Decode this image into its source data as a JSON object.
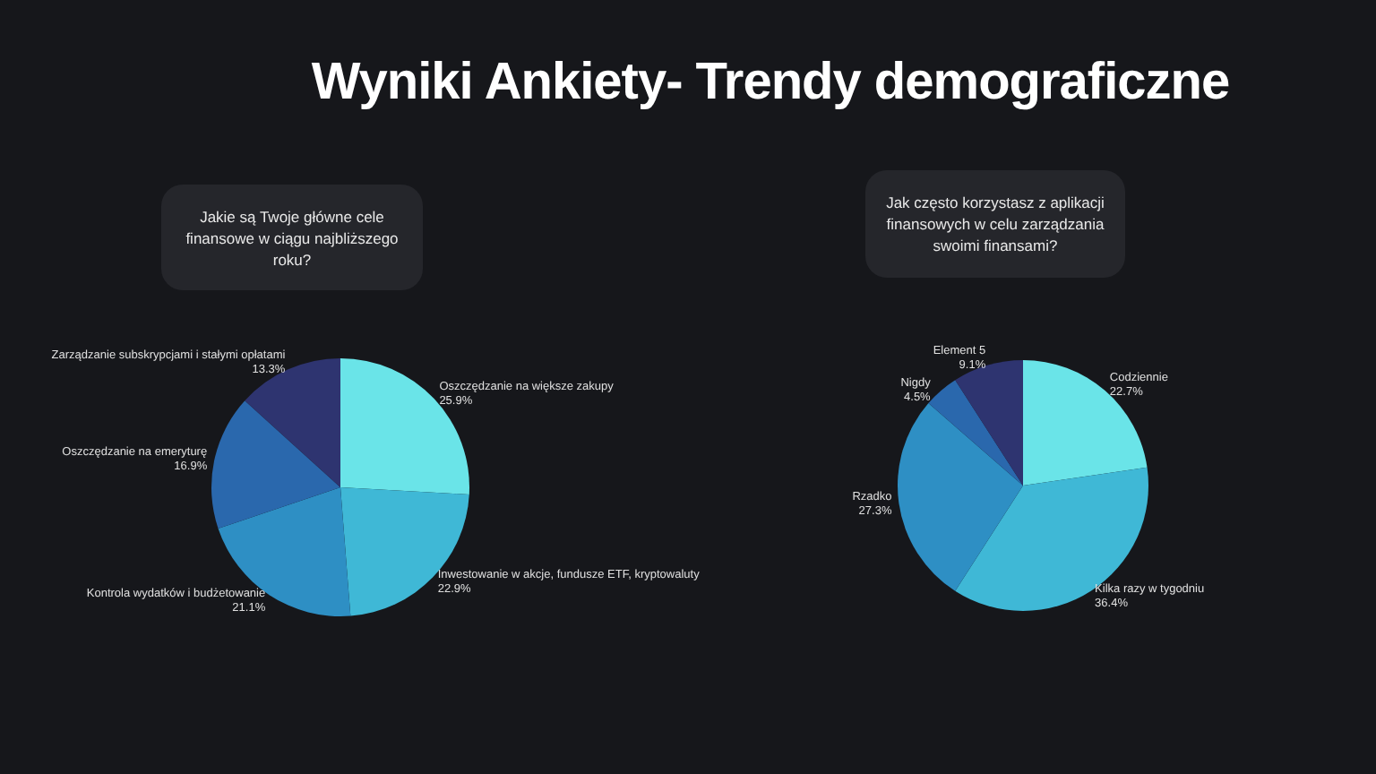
{
  "chart_data": [
    {
      "type": "pie",
      "title": "Wyniki Ankiety- Trendy demograficzne",
      "subtitle": "Jakie są Twoje główne cele finansowe w ciągu najbliższego roku?",
      "categories": [
        "Oszczędzanie na większe zakupy",
        "Inwestowanie w akcje, fundusze ETF, kryptowaluty",
        "Kontrola wydatków i budżetowanie",
        "Oszczędzanie na emeryturę",
        "Zarządzanie subskrypcjami i stałymi opłatami"
      ],
      "values": [
        25.9,
        22.9,
        21.1,
        16.9,
        13.3
      ],
      "value_labels": [
        "25.9%",
        "22.9%",
        "21.1%",
        "16.9%",
        "13.3%"
      ],
      "colors": [
        "#6ae4e8",
        "#3fb8d6",
        "#2e8fc4",
        "#2a68ad",
        "#2e3470"
      ],
      "legend": false
    },
    {
      "type": "pie",
      "subtitle": "Jak często korzystasz z aplikacji finansowych w celu zarządzania swoimi finansami?",
      "categories": [
        "Codziennie",
        "Kilka razy w tygodniu",
        "Rzadko",
        "Nigdy",
        "Element 5"
      ],
      "values": [
        22.7,
        36.4,
        27.3,
        4.5,
        9.1
      ],
      "value_labels": [
        "22.7%",
        "36.4%",
        "27.3%",
        "4.5%",
        "9.1%"
      ],
      "colors": [
        "#6ae4e8",
        "#3fb8d6",
        "#2e8fc4",
        "#2a68ad",
        "#2e3470"
      ],
      "legend": false
    }
  ]
}
